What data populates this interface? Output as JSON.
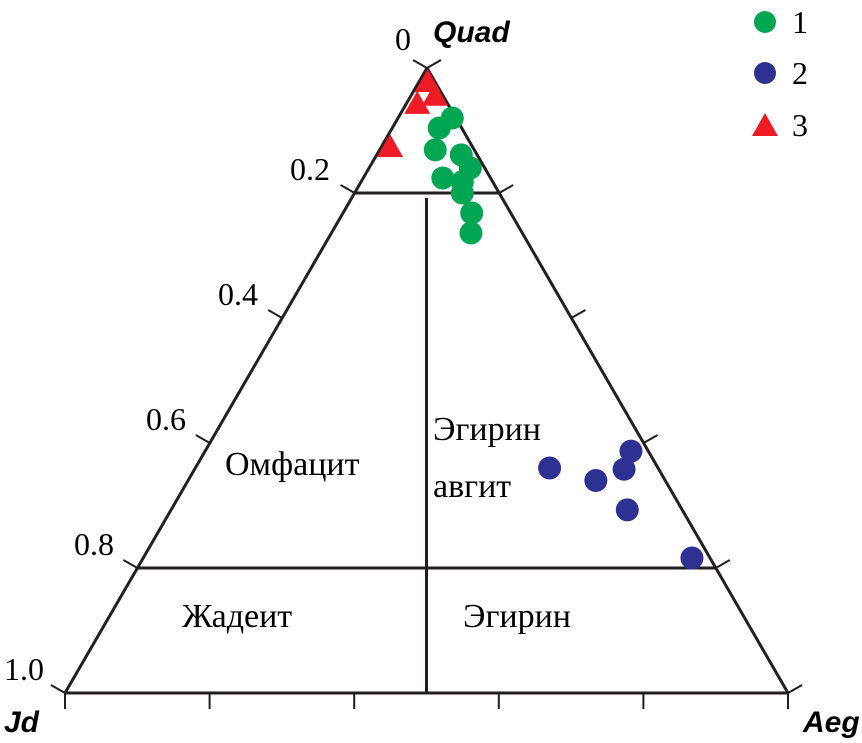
{
  "chart_data": {
    "type": "scatter",
    "subtype": "ternary",
    "vertices": {
      "top": "Quad",
      "left": "Jd",
      "right": "Aeg"
    },
    "tick_labels": [
      "0",
      "0.2",
      "0.4",
      "0.6",
      "0.8",
      "1.0"
    ],
    "fields": {
      "omphacite": "Омфацит",
      "aegirine_augite_1": "Эгирин",
      "aegirine_augite_2": "авгит",
      "jadeite": "Жадеит",
      "aegirine": "Эгирин"
    },
    "boundaries": {
      "quad_upper": 0.8,
      "quad_lower": 0.2,
      "jd_aeg_split": 0.5
    },
    "series": [
      {
        "name": "1",
        "marker": "circle",
        "color": "#00a651",
        "points": [
          {
            "quad": 0.92,
            "jd": 0.005,
            "aeg": 0.075
          },
          {
            "quad": 0.904,
            "jd": 0.031,
            "aeg": 0.065
          },
          {
            "quad": 0.869,
            "jd": 0.054,
            "aeg": 0.077
          },
          {
            "quad": 0.861,
            "jd": 0.022,
            "aeg": 0.117
          },
          {
            "quad": 0.84,
            "jd": 0.02,
            "aeg": 0.14
          },
          {
            "quad": 0.824,
            "jd": 0.066,
            "aeg": 0.11
          },
          {
            "quad": 0.818,
            "jd": 0.042,
            "aeg": 0.14
          },
          {
            "quad": 0.8,
            "jd": 0.051,
            "aeg": 0.149
          },
          {
            "quad": 0.768,
            "jd": 0.054,
            "aeg": 0.178
          },
          {
            "quad": 0.736,
            "jd": 0.071,
            "aeg": 0.193
          }
        ]
      },
      {
        "name": "2",
        "marker": "circle",
        "color": "#2e3192",
        "points": [
          {
            "quad": 0.36,
            "jd": 0.15,
            "aeg": 0.49
          },
          {
            "quad": 0.34,
            "jd": 0.096,
            "aeg": 0.564
          },
          {
            "quad": 0.358,
            "jd": 0.048,
            "aeg": 0.594
          },
          {
            "quad": 0.387,
            "jd": 0.024,
            "aeg": 0.589
          },
          {
            "quad": 0.293,
            "jd": 0.076,
            "aeg": 0.631
          },
          {
            "quad": 0.216,
            "jd": 0.025,
            "aeg": 0.759
          }
        ]
      },
      {
        "name": "3",
        "marker": "triangle",
        "color": "#ed1c24",
        "points": [
          {
            "quad": 0.976,
            "jd": 0.011,
            "aeg": 0.013
          },
          {
            "quad": 0.954,
            "jd": 0.012,
            "aeg": 0.034
          },
          {
            "quad": 0.941,
            "jd": 0.043,
            "aeg": 0.016
          },
          {
            "quad": 0.872,
            "jd": 0.115,
            "aeg": 0.013
          }
        ]
      }
    ],
    "legend": "top-right"
  }
}
